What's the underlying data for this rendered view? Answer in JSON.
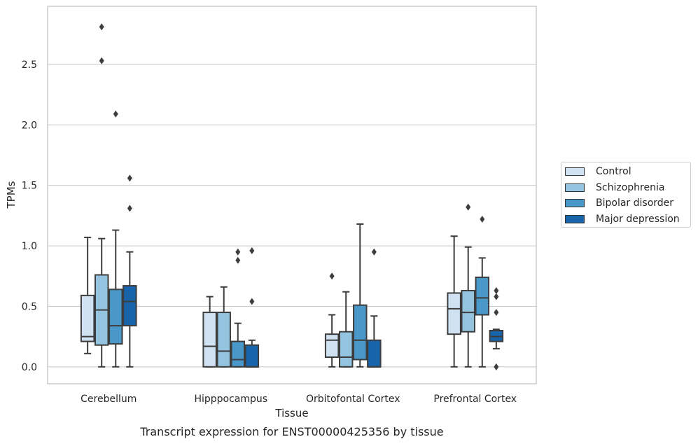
{
  "chart_data": {
    "type": "boxplot",
    "caption": "Transcript expression for ENST00000425356 by tissue",
    "xlabel": "Tissue",
    "ylabel": "TPMs",
    "ylim": [
      -0.14,
      2.98
    ],
    "yticks": [
      0.0,
      0.5,
      1.0,
      1.5,
      2.0,
      2.5
    ],
    "ytick_labels": [
      "0.0",
      "0.5",
      "1.0",
      "1.5",
      "2.0",
      "2.5"
    ],
    "grid": "horizontal",
    "legend_position": "right",
    "categories": [
      "Cerebellum",
      "Hipppocampus",
      "Orbitofontal Cortex",
      "Prefrontal Cortex"
    ],
    "series": [
      {
        "name": "Control",
        "color": "#d0e1f2",
        "boxes": [
          {
            "whislo": 0.11,
            "q1": 0.21,
            "med": 0.25,
            "q3": 0.59,
            "whishi": 1.07,
            "fliers": []
          },
          {
            "whislo": 0.0,
            "q1": 0.0,
            "med": 0.17,
            "q3": 0.45,
            "whishi": 0.58,
            "fliers": []
          },
          {
            "whislo": 0.0,
            "q1": 0.08,
            "med": 0.22,
            "q3": 0.27,
            "whishi": 0.43,
            "fliers": [
              0.75
            ]
          },
          {
            "whislo": 0.0,
            "q1": 0.27,
            "med": 0.48,
            "q3": 0.61,
            "whishi": 1.08,
            "fliers": []
          }
        ]
      },
      {
        "name": "Schizophrenia",
        "color": "#94c4df",
        "boxes": [
          {
            "whislo": 0.0,
            "q1": 0.18,
            "med": 0.47,
            "q3": 0.76,
            "whishi": 1.06,
            "fliers": [
              2.53,
              2.81
            ]
          },
          {
            "whislo": 0.0,
            "q1": 0.0,
            "med": 0.13,
            "q3": 0.45,
            "whishi": 0.66,
            "fliers": []
          },
          {
            "whislo": 0.0,
            "q1": 0.0,
            "med": 0.08,
            "q3": 0.29,
            "whishi": 0.62,
            "fliers": []
          },
          {
            "whislo": 0.0,
            "q1": 0.29,
            "med": 0.45,
            "q3": 0.63,
            "whishi": 0.99,
            "fliers": [
              1.32
            ]
          }
        ]
      },
      {
        "name": "Bipolar disorder",
        "color": "#4a98c9",
        "boxes": [
          {
            "whislo": 0.0,
            "q1": 0.19,
            "med": 0.34,
            "q3": 0.64,
            "whishi": 1.13,
            "fliers": [
              2.09
            ]
          },
          {
            "whislo": 0.0,
            "q1": 0.0,
            "med": 0.06,
            "q3": 0.21,
            "whishi": 0.36,
            "fliers": [
              0.88,
              0.95
            ]
          },
          {
            "whislo": 0.0,
            "q1": 0.06,
            "med": 0.22,
            "q3": 0.51,
            "whishi": 1.18,
            "fliers": []
          },
          {
            "whislo": 0.0,
            "q1": 0.43,
            "med": 0.57,
            "q3": 0.74,
            "whishi": 0.9,
            "fliers": [
              1.22
            ]
          }
        ]
      },
      {
        "name": "Major depression",
        "color": "#1764ab",
        "boxes": [
          {
            "whislo": 0.0,
            "q1": 0.34,
            "med": 0.54,
            "q3": 0.67,
            "whishi": 0.95,
            "fliers": [
              1.31,
              1.56
            ]
          },
          {
            "whislo": 0.0,
            "q1": 0.0,
            "med": 0.0,
            "q3": 0.18,
            "whishi": 0.22,
            "fliers": [
              0.54,
              0.96
            ]
          },
          {
            "whislo": 0.0,
            "q1": 0.0,
            "med": 0.0,
            "q3": 0.22,
            "whishi": 0.42,
            "fliers": [
              0.95
            ]
          },
          {
            "whislo": 0.15,
            "q1": 0.21,
            "med": 0.25,
            "q3": 0.3,
            "whishi": 0.31,
            "fliers": [
              0.0,
              0.45,
              0.58,
              0.63
            ]
          }
        ]
      }
    ]
  }
}
